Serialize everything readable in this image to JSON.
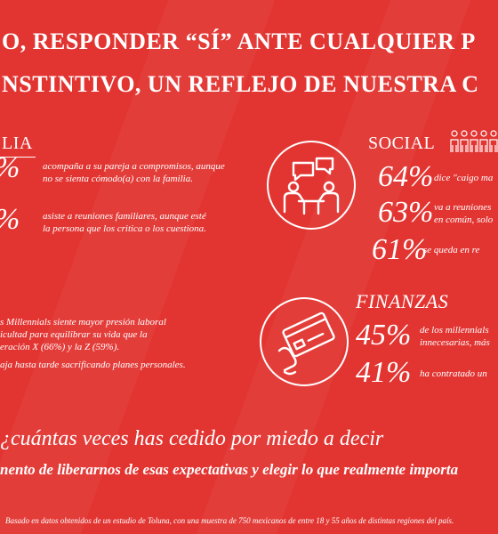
{
  "title": {
    "line1": "O, RESPONDER “SÍ” ANTE CUALQUIER P",
    "line2": "NSTINTIVO, UN REFLEJO DE NUESTRA C"
  },
  "familia": {
    "heading": "LIA",
    "stats": [
      {
        "pct": "%",
        "line1": "acompaña a su pareja a  compromisos, aunque",
        "line2": "no se sienta cómodo(a) con la familia."
      },
      {
        "pct": "%",
        "line1": "asiste a reuniones familiares, aunque esté",
        "line2": "la persona que los critica o los cuestiona."
      }
    ]
  },
  "trabajo": {
    "lines": [
      "s Millennials siente mayor presión laboral",
      "icultad para equilibrar su vida que la",
      "eración X (66%) y la Z (59%)."
    ],
    "line4": "aja hasta tarde sacrificando planes personales."
  },
  "social": {
    "heading": "SOCIAL",
    "stats": [
      {
        "pct": "64%",
        "line1": "dice \"caigo ma",
        "line2": ""
      },
      {
        "pct": "63%",
        "line1": "va a reuniones",
        "line2": "en común, solo"
      },
      {
        "pct": "61%",
        "line1": "se queda en re",
        "line2": ""
      }
    ]
  },
  "finanzas": {
    "heading": "FINANZAS",
    "stats": [
      {
        "pct": "45%",
        "line1": "de los millennials",
        "line2": "innecesarias, más"
      },
      {
        "pct": "41%",
        "line1": "ha contratado un",
        "line2": ""
      }
    ]
  },
  "question": "¿cuántas veces has cedido por miedo a decir",
  "subtitle": "nento de liberarnos de esas expectativas y elegir lo que realmente importa",
  "footnote": "Basado en datos obtenidos de un estudio de Toluna, con una muestra de 750 mexicanos de entre 18 y 55 años de distintas regiones del país.",
  "colors": {
    "background": "#e23532",
    "foreground": "#ffffff"
  },
  "icons": [
    "social-meeting-icon",
    "people-row-icon",
    "credit-card-icon"
  ]
}
